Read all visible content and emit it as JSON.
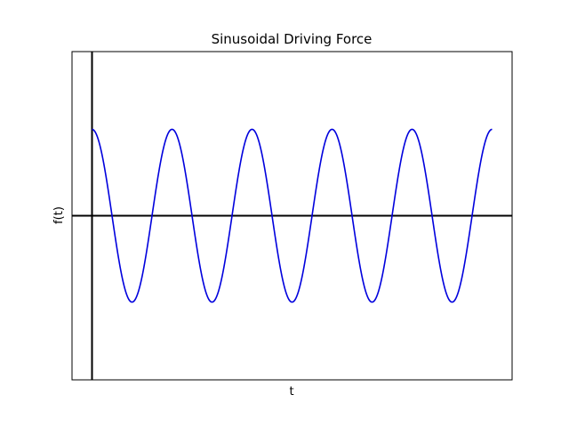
{
  "chart_data": {
    "type": "line",
    "title": "Sinusoidal Driving Force",
    "xlabel": "t",
    "ylabel": "f(t)",
    "xlim": [
      -0.5,
      10.5
    ],
    "ylim": [
      -1.9,
      1.9
    ],
    "grid": false,
    "xticks": [],
    "yticks": [],
    "reference_lines": {
      "horizontal_y": 0,
      "vertical_x": 0,
      "color": "#000000"
    },
    "series": [
      {
        "function": "cos(2*pi*t/2)",
        "amplitude": 1,
        "period": 2,
        "x_range": [
          0,
          10
        ],
        "samples": 600,
        "color": "#0000dd"
      }
    ]
  }
}
